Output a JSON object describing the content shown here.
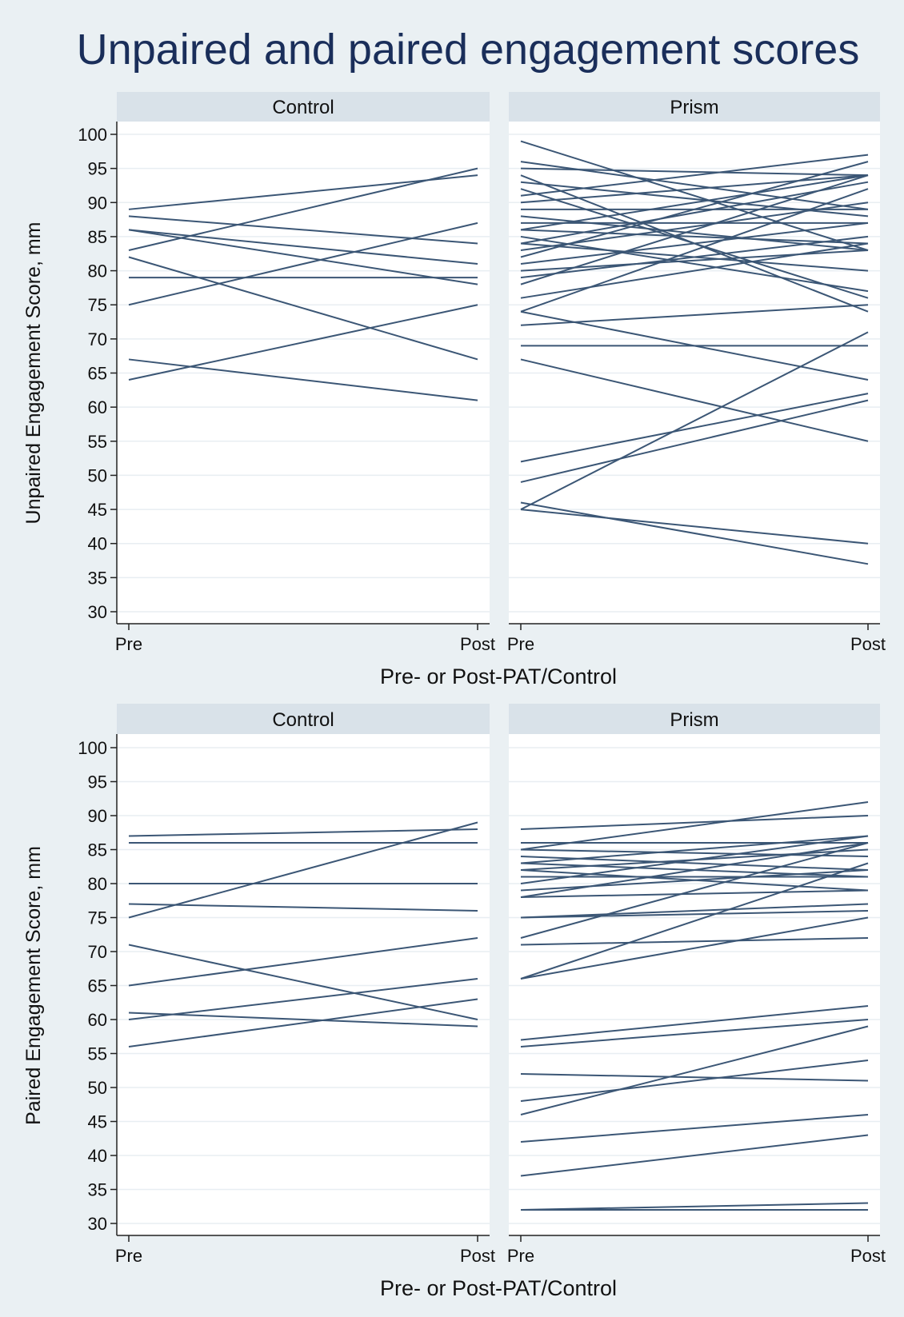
{
  "figure": {
    "title": "Unpaired and paired engagement scores",
    "colors": {
      "background": "#eaf0f3",
      "plot_bg": "#ffffff",
      "strip": "#d9e2e9",
      "grid": "#e8eef2",
      "line": "#3b5675",
      "title": "#1a2e5a",
      "text": "#111111"
    }
  },
  "chart_data": [
    {
      "type": "line",
      "ylabel": "Unpaired Engagement Score, mm",
      "xlabel": "Pre- or Post-PAT/Control",
      "categories": [
        "Pre",
        "Post"
      ],
      "ylim": [
        30,
        100
      ],
      "yticks": [
        30,
        35,
        40,
        45,
        50,
        55,
        60,
        65,
        70,
        75,
        80,
        85,
        90,
        95,
        100
      ],
      "grid": true,
      "panels": [
        {
          "label": "Control",
          "series": [
            [
              89,
              94
            ],
            [
              88,
              84
            ],
            [
              86,
              81
            ],
            [
              86,
              78
            ],
            [
              83,
              95
            ],
            [
              82,
              67
            ],
            [
              79,
              79
            ],
            [
              75,
              87
            ],
            [
              67,
              61
            ],
            [
              64,
              75
            ]
          ]
        },
        {
          "label": "Prism",
          "series": [
            [
              99,
              83
            ],
            [
              96,
              89
            ],
            [
              95,
              94
            ],
            [
              94,
              74
            ],
            [
              93,
              88
            ],
            [
              92,
              76
            ],
            [
              91,
              97
            ],
            [
              90,
              94
            ],
            [
              89,
              89
            ],
            [
              88,
              83
            ],
            [
              87,
              87
            ],
            [
              86,
              94
            ],
            [
              86,
              84
            ],
            [
              85,
              77
            ],
            [
              84,
              80
            ],
            [
              84,
              93
            ],
            [
              83,
              90
            ],
            [
              82,
              96
            ],
            [
              81,
              87
            ],
            [
              80,
              83
            ],
            [
              79,
              85
            ],
            [
              78,
              94
            ],
            [
              76,
              84
            ],
            [
              74,
              92
            ],
            [
              74,
              64
            ],
            [
              72,
              75
            ],
            [
              69,
              69
            ],
            [
              67,
              55
            ],
            [
              52,
              62
            ],
            [
              49,
              61
            ],
            [
              46,
              37
            ],
            [
              45,
              71
            ],
            [
              45,
              40
            ]
          ]
        }
      ]
    },
    {
      "type": "line",
      "ylabel": "Paired Engagement Score, mm",
      "xlabel": "Pre- or Post-PAT/Control",
      "categories": [
        "Pre",
        "Post"
      ],
      "ylim": [
        30,
        100
      ],
      "yticks": [
        30,
        35,
        40,
        45,
        50,
        55,
        60,
        65,
        70,
        75,
        80,
        85,
        90,
        95,
        100
      ],
      "grid": true,
      "panels": [
        {
          "label": "Control",
          "series": [
            [
              87,
              88
            ],
            [
              86,
              86
            ],
            [
              80,
              80
            ],
            [
              77,
              76
            ],
            [
              75,
              89
            ],
            [
              71,
              60
            ],
            [
              65,
              72
            ],
            [
              61,
              59
            ],
            [
              60,
              66
            ],
            [
              56,
              63
            ]
          ]
        },
        {
          "label": "Prism",
          "series": [
            [
              88,
              90
            ],
            [
              86,
              86
            ],
            [
              85,
              92
            ],
            [
              85,
              84
            ],
            [
              84,
              82
            ],
            [
              83,
              87
            ],
            [
              83,
              81
            ],
            [
              82,
              79
            ],
            [
              82,
              85
            ],
            [
              81,
              81
            ],
            [
              80,
              87
            ],
            [
              79,
              82
            ],
            [
              78,
              79
            ],
            [
              78,
              86
            ],
            [
              75,
              77
            ],
            [
              75,
              76
            ],
            [
              72,
              86
            ],
            [
              71,
              72
            ],
            [
              66,
              83
            ],
            [
              66,
              75
            ],
            [
              57,
              62
            ],
            [
              56,
              60
            ],
            [
              52,
              51
            ],
            [
              48,
              54
            ],
            [
              46,
              59
            ],
            [
              42,
              46
            ],
            [
              37,
              43
            ],
            [
              32,
              33
            ],
            [
              32,
              32
            ]
          ]
        }
      ]
    }
  ]
}
